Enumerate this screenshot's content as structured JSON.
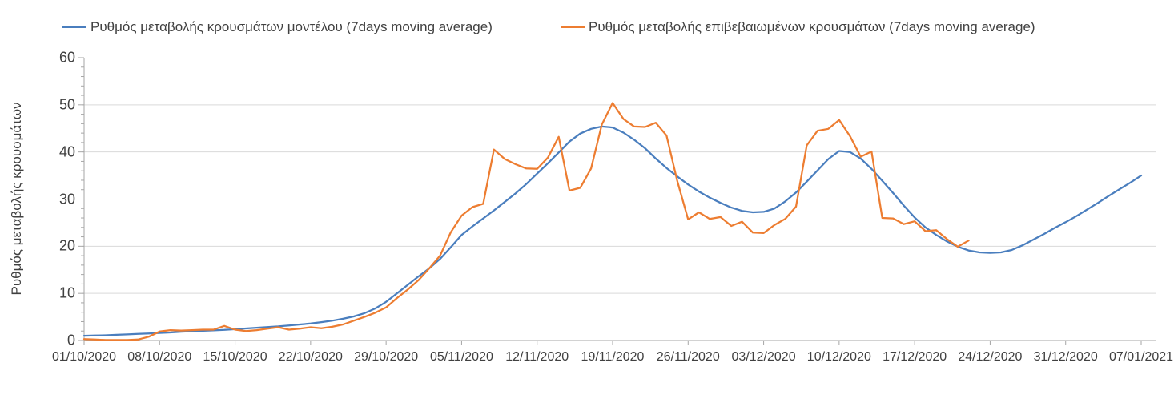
{
  "chart_data": {
    "type": "line",
    "title": "",
    "xlabel": "",
    "ylabel": "Ρυθμός μεταβολής κρουσμάτων",
    "ylim": [
      0,
      60
    ],
    "y_major_step": 10,
    "y_minor_step": 2,
    "grid": "horizontal-major",
    "legend_position": "top",
    "y_tick_values": [
      0,
      10,
      20,
      30,
      40,
      50,
      60
    ],
    "y_tick_labels": [
      "0",
      "10",
      "20",
      "30",
      "40",
      "50",
      "60"
    ],
    "y_gridline_values": [
      10,
      20,
      30,
      40,
      50
    ],
    "x_tick_days": [
      0,
      7,
      14,
      21,
      28,
      35,
      42,
      49,
      56,
      63,
      70,
      77,
      84,
      91,
      98
    ],
    "x_tick_labels": [
      "01/10/2020",
      "08/10/2020",
      "15/10/2020",
      "22/10/2020",
      "29/10/2020",
      "05/11/2020",
      "12/11/2020",
      "19/11/2020",
      "26/11/2020",
      "03/12/2020",
      "10/12/2020",
      "17/12/2020",
      "24/12/2020",
      "31/12/2020",
      "07/01/2021"
    ],
    "x_range_days": [
      0,
      98
    ],
    "x_unit": "date (dd/mm/yyyy), daily points",
    "series": [
      {
        "name": "Ρυθμός μεταβολής κρουσμάτων μοντέλου (7days moving average)",
        "color": "#4A7EBE",
        "start_day": 0,
        "values": [
          1.0,
          1.05,
          1.1,
          1.2,
          1.3,
          1.4,
          1.5,
          1.6,
          1.7,
          1.85,
          1.95,
          2.05,
          2.15,
          2.25,
          2.4,
          2.55,
          2.7,
          2.85,
          3.0,
          3.2,
          3.4,
          3.6,
          3.9,
          4.2,
          4.6,
          5.1,
          5.8,
          6.8,
          8.2,
          10.0,
          11.8,
          13.6,
          15.3,
          17.3,
          19.8,
          22.4,
          24.2,
          25.9,
          27.6,
          29.4,
          31.2,
          33.2,
          35.4,
          37.6,
          39.9,
          42.2,
          43.9,
          44.9,
          45.4,
          45.2,
          44.1,
          42.6,
          40.8,
          38.6,
          36.6,
          34.8,
          33.1,
          31.6,
          30.3,
          29.2,
          28.2,
          27.5,
          27.2,
          27.3,
          28.0,
          29.5,
          31.4,
          33.7,
          36.1,
          38.5,
          40.2,
          40.0,
          38.6,
          36.4,
          33.9,
          31.3,
          28.6,
          26.1,
          24.0,
          22.4,
          21.0,
          19.9,
          19.1,
          18.7,
          18.6,
          18.7,
          19.2,
          20.2,
          21.4,
          22.6,
          23.9,
          25.1,
          26.4,
          27.8,
          29.2,
          30.7,
          32.1,
          33.5,
          35.0
        ]
      },
      {
        "name": "Ρυθμός μεταβολής επιβεβαιωμένων κρουσμάτων (7days moving average)",
        "color": "#ED7D31",
        "start_day": 0,
        "values": [
          0.3,
          0.2,
          0.1,
          0.1,
          0.1,
          0.2,
          0.8,
          1.9,
          2.2,
          2.1,
          2.2,
          2.3,
          2.3,
          3.1,
          2.3,
          2.0,
          2.2,
          2.5,
          2.8,
          2.3,
          2.5,
          2.8,
          2.6,
          2.9,
          3.4,
          4.2,
          5.0,
          5.9,
          7.0,
          9.0,
          10.8,
          12.8,
          15.3,
          18.0,
          23.0,
          26.5,
          28.3,
          29.0,
          40.5,
          38.5,
          37.4,
          36.5,
          36.4,
          38.8,
          43.2,
          31.8,
          32.4,
          36.5,
          45.8,
          50.4,
          47.0,
          45.4,
          45.3,
          46.2,
          43.5,
          33.8,
          25.7,
          27.2,
          25.8,
          26.2,
          24.3,
          25.2,
          22.9,
          22.8,
          24.5,
          25.8,
          28.4,
          41.4,
          44.5,
          44.9,
          46.8,
          43.4,
          39.0,
          40.1,
          26.0,
          25.9,
          24.7,
          25.3,
          23.2,
          23.4,
          21.5,
          19.9,
          21.2
        ]
      }
    ],
    "colors": {
      "gridline": "#D9D9D9",
      "axis": "#A6A6A6",
      "tick": "#A6A6A6",
      "text": "#404040",
      "background": "#FFFFFF"
    }
  }
}
